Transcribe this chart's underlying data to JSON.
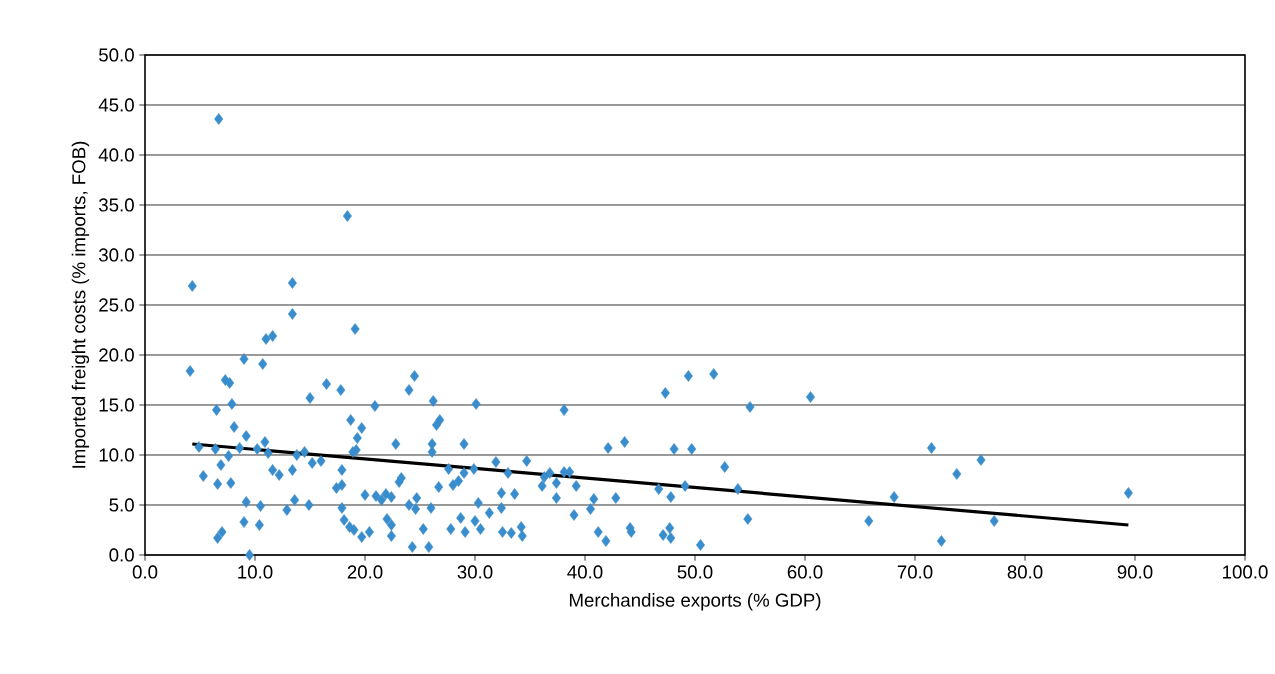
{
  "chart_data": {
    "type": "scatter",
    "xlabel": "Merchandise exports (% GDP)",
    "ylabel": "Imported freight costs (% imports, FOB)",
    "xlim": [
      0,
      100
    ],
    "ylim": [
      0,
      50
    ],
    "xticks": [
      {
        "value": 0,
        "label": "0.0"
      },
      {
        "value": 10,
        "label": "10.0"
      },
      {
        "value": 20,
        "label": "20.0"
      },
      {
        "value": 30,
        "label": "30.0"
      },
      {
        "value": 40,
        "label": "40.0"
      },
      {
        "value": 50,
        "label": "50.0"
      },
      {
        "value": 60,
        "label": "60.0"
      },
      {
        "value": 70,
        "label": "70.0"
      },
      {
        "value": 80,
        "label": "80.0"
      },
      {
        "value": 90,
        "label": "90.0"
      },
      {
        "value": 100,
        "label": "100.0"
      }
    ],
    "yticks": [
      {
        "value": 0,
        "label": "0.0"
      },
      {
        "value": 5,
        "label": "5.0"
      },
      {
        "value": 10,
        "label": "10.0"
      },
      {
        "value": 15,
        "label": "15.0"
      },
      {
        "value": 20,
        "label": "20.0"
      },
      {
        "value": 25,
        "label": "25.0"
      },
      {
        "value": 30,
        "label": "30.0"
      },
      {
        "value": 35,
        "label": "35.0"
      },
      {
        "value": 40,
        "label": "40.0"
      },
      {
        "value": 45,
        "label": "45.0"
      },
      {
        "value": 50,
        "label": "50.0"
      }
    ],
    "grid": "y",
    "series": [
      {
        "color": "#3a8dcc",
        "marker": "diamond",
        "x": [
          4.1,
          4.3,
          4.9,
          5.3,
          6.7,
          6.5,
          6.4,
          6.6,
          6.6,
          6.9,
          7.0,
          7.3,
          7.7,
          7.6,
          7.8,
          7.9,
          8.1,
          8.6,
          9.0,
          9.0,
          9.2,
          9.2,
          9.5,
          10.2,
          10.5,
          10.4,
          10.7,
          10.9,
          11.0,
          11.2,
          11.6,
          11.6,
          12.2,
          12.9,
          13.4,
          13.4,
          13.4,
          13.6,
          13.8,
          14.5,
          14.9,
          15.0,
          15.2,
          16.0,
          16.5,
          17.4,
          17.8,
          17.9,
          17.9,
          17.9,
          18.4,
          18.1,
          18.6,
          18.7,
          18.9,
          19.0,
          19.1,
          19.2,
          19.3,
          19.7,
          19.7,
          20.0,
          20.4,
          20.9,
          21.0,
          21.5,
          21.9,
          22.0,
          22.4,
          22.4,
          22.4,
          22.8,
          23.1,
          23.3,
          24.0,
          24.0,
          24.5,
          24.3,
          24.7,
          24.6,
          25.3,
          25.8,
          26.0,
          26.2,
          26.1,
          26.1,
          26.5,
          26.8,
          26.7,
          27.6,
          27.8,
          28.0,
          28.5,
          28.7,
          29.0,
          29.0,
          29.1,
          29.9,
          30.0,
          30.1,
          30.3,
          30.5,
          31.3,
          31.9,
          32.4,
          32.4,
          32.5,
          33.0,
          33.3,
          33.6,
          34.2,
          34.3,
          34.7,
          36.1,
          36.3,
          36.8,
          37.4,
          37.4,
          38.1,
          38.1,
          38.6,
          39.0,
          39.2,
          40.5,
          40.8,
          41.2,
          41.9,
          42.1,
          42.8,
          43.6,
          44.1,
          44.2,
          46.7,
          47.1,
          47.3,
          47.8,
          47.7,
          47.8,
          48.1,
          49.1,
          49.4,
          49.7,
          50.5,
          51.7,
          52.7,
          53.9,
          54.8,
          55.0,
          60.5,
          65.8,
          68.1,
          71.5,
          72.4,
          73.8,
          76.0,
          77.2,
          89.4
        ],
        "values": [
          18.4,
          26.9,
          10.8,
          7.9,
          43.6,
          14.5,
          10.6,
          7.1,
          1.7,
          9.0,
          2.3,
          17.5,
          17.2,
          9.9,
          7.2,
          15.1,
          12.8,
          10.7,
          19.6,
          3.3,
          5.3,
          11.9,
          0.0,
          10.6,
          4.9,
          3.0,
          19.1,
          11.3,
          21.6,
          10.2,
          21.9,
          8.5,
          8.0,
          4.5,
          27.2,
          24.1,
          8.5,
          5.5,
          10.0,
          10.3,
          5.0,
          15.7,
          9.2,
          9.4,
          17.1,
          6.7,
          16.5,
          8.5,
          7.0,
          4.7,
          33.9,
          3.5,
          2.8,
          13.5,
          10.3,
          2.5,
          22.6,
          10.5,
          11.7,
          12.7,
          1.8,
          6.0,
          2.3,
          14.9,
          5.9,
          5.5,
          6.1,
          3.6,
          5.8,
          3.0,
          1.9,
          11.1,
          7.3,
          7.7,
          5.0,
          16.5,
          17.9,
          0.8,
          5.7,
          4.6,
          2.6,
          0.8,
          4.7,
          15.4,
          11.1,
          10.3,
          13.0,
          13.5,
          6.8,
          8.6,
          2.6,
          7.0,
          7.4,
          3.7,
          11.1,
          8.2,
          2.3,
          8.6,
          3.4,
          15.1,
          5.2,
          2.6,
          4.2,
          9.3,
          6.2,
          4.7,
          2.3,
          8.2,
          2.2,
          6.1,
          2.8,
          1.9,
          9.4,
          6.9,
          7.8,
          8.2,
          7.2,
          5.7,
          14.5,
          8.3,
          8.3,
          4.0,
          6.9,
          4.6,
          5.6,
          2.3,
          1.4,
          10.7,
          5.7,
          11.3,
          2.7,
          2.3,
          6.6,
          2.0,
          16.2,
          5.8,
          2.7,
          1.7,
          10.6,
          6.9,
          17.9,
          10.6,
          1.0,
          18.1,
          8.8,
          6.6,
          3.6,
          14.8,
          15.8,
          3.4,
          5.8,
          10.7,
          1.4,
          8.1,
          9.5,
          3.4,
          6.2
        ]
      },
      {
        "type": "line",
        "color": "#000000",
        "marker": "none",
        "line_style": "solid",
        "x": [
          4.3,
          89.4
        ],
        "values": [
          11.1,
          3.0
        ]
      }
    ]
  }
}
